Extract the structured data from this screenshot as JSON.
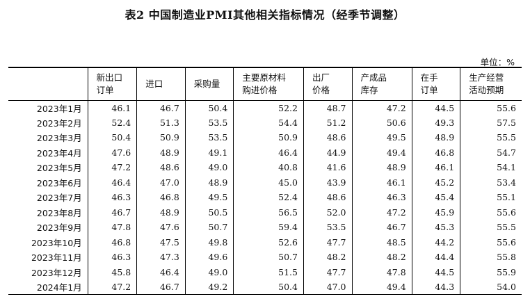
{
  "title": "表2 中国制造业PMI其他相关指标情况（经季节调整）",
  "unit": "单位：%",
  "columns": [
    {
      "line1": "",
      "line2": ""
    },
    {
      "line1": "新出口",
      "line2": "订单"
    },
    {
      "line1": "进口",
      "line2": ""
    },
    {
      "line1": "采购量",
      "line2": ""
    },
    {
      "line1": "主要原材料",
      "line2": "购进价格"
    },
    {
      "line1": "出厂",
      "line2": "价格"
    },
    {
      "line1": "产成品",
      "line2": "库存"
    },
    {
      "line1": "在手",
      "line2": "订单"
    },
    {
      "line1": "生产经营",
      "line2": "活动预期"
    }
  ],
  "rows": [
    [
      "2023年1月",
      "46.1",
      "46.7",
      "50.4",
      "52.2",
      "48.7",
      "47.2",
      "44.5",
      "55.6"
    ],
    [
      "2023年2月",
      "52.4",
      "51.3",
      "53.5",
      "54.4",
      "51.2",
      "50.6",
      "49.3",
      "57.5"
    ],
    [
      "2023年3月",
      "50.4",
      "50.9",
      "53.5",
      "50.9",
      "48.6",
      "49.5",
      "48.9",
      "55.5"
    ],
    [
      "2023年4月",
      "47.6",
      "48.9",
      "49.1",
      "46.4",
      "44.9",
      "49.4",
      "46.8",
      "54.7"
    ],
    [
      "2023年5月",
      "47.2",
      "48.6",
      "49.0",
      "40.8",
      "41.6",
      "48.9",
      "46.1",
      "54.1"
    ],
    [
      "2023年6月",
      "46.4",
      "47.0",
      "48.9",
      "45.0",
      "43.9",
      "46.1",
      "45.2",
      "53.4"
    ],
    [
      "2023年7月",
      "46.3",
      "46.8",
      "49.5",
      "52.4",
      "48.6",
      "46.3",
      "45.4",
      "55.1"
    ],
    [
      "2023年8月",
      "46.7",
      "48.9",
      "50.5",
      "56.5",
      "52.0",
      "47.2",
      "45.9",
      "55.6"
    ],
    [
      "2023年9月",
      "47.8",
      "47.6",
      "50.7",
      "59.4",
      "53.5",
      "46.7",
      "45.3",
      "55.5"
    ],
    [
      "2023年10月",
      "46.8",
      "47.5",
      "49.8",
      "52.6",
      "47.7",
      "48.5",
      "44.2",
      "55.6"
    ],
    [
      "2023年11月",
      "46.3",
      "47.3",
      "49.6",
      "50.7",
      "48.2",
      "48.2",
      "44.4",
      "55.8"
    ],
    [
      "2023年12月",
      "45.8",
      "46.4",
      "49.0",
      "51.5",
      "47.7",
      "47.8",
      "44.5",
      "55.9"
    ],
    [
      "2024年1月",
      "47.2",
      "46.7",
      "49.2",
      "50.4",
      "47.0",
      "49.4",
      "44.3",
      "54.0"
    ]
  ]
}
